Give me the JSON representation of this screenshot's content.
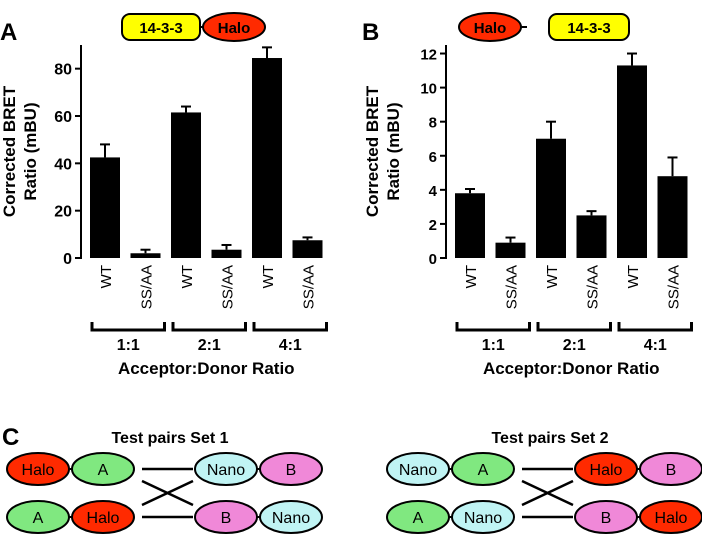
{
  "panels": {
    "A": {
      "letter": "A",
      "construct": [
        "14-3-3",
        "Halo"
      ]
    },
    "B": {
      "letter": "B",
      "construct": [
        "Halo",
        "14-3-3"
      ]
    },
    "C": {
      "letter": "C"
    }
  },
  "colors": {
    "bar": "#000000",
    "yellow": "#ffff00",
    "red": "#ff2a00",
    "green": "#80e880",
    "cyan": "#c0f4f4",
    "pink": "#f088d8"
  },
  "chart_data": [
    {
      "type": "bar",
      "panel": "A",
      "ylabel": [
        "Corrected BRET",
        "Ratio (mBU)"
      ],
      "xlabel": "Acceptor:Donor Ratio",
      "ylim": [
        0,
        90
      ],
      "yticks": [
        0,
        20,
        40,
        60,
        80
      ],
      "categories": [
        "WT",
        "SS/AA",
        "WT",
        "SS/AA",
        "WT",
        "SS/AA"
      ],
      "groups": [
        "1:1",
        "2:1",
        "4:1"
      ],
      "values": [
        42.5,
        2.0,
        61.5,
        3.5,
        84.5,
        7.5
      ],
      "errors": [
        5.5,
        1.5,
        2.5,
        2.0,
        4.5,
        1.2
      ]
    },
    {
      "type": "bar",
      "panel": "B",
      "ylabel": [
        "Corrected BRET",
        "Ratio (mBU)"
      ],
      "xlabel": "Acceptor:Donor Ratio",
      "ylim": [
        0,
        12.5
      ],
      "yticks": [
        0,
        2,
        4,
        6,
        8,
        10,
        12
      ],
      "categories": [
        "WT",
        "SS/AA",
        "WT",
        "SS/AA",
        "WT",
        "SS/AA"
      ],
      "groups": [
        "1:1",
        "2:1",
        "4:1"
      ],
      "values": [
        3.8,
        0.9,
        7.0,
        2.5,
        11.3,
        4.8
      ],
      "errors": [
        0.25,
        0.3,
        1.0,
        0.25,
        0.7,
        1.1
      ]
    }
  ],
  "diagram": {
    "set1": {
      "title": "Test pairs Set 1",
      "left_top": [
        "Halo",
        "A"
      ],
      "left_bottom": [
        "A",
        "Halo"
      ],
      "right_top": [
        "Nano",
        "B"
      ],
      "right_bottom": [
        "B",
        "Nano"
      ]
    },
    "set2": {
      "title": "Test pairs Set 2",
      "left_top": [
        "Nano",
        "A"
      ],
      "left_bottom": [
        "A",
        "Nano"
      ],
      "right_top": [
        "Halo",
        "B"
      ],
      "right_bottom": [
        "B",
        "Halo"
      ]
    }
  }
}
